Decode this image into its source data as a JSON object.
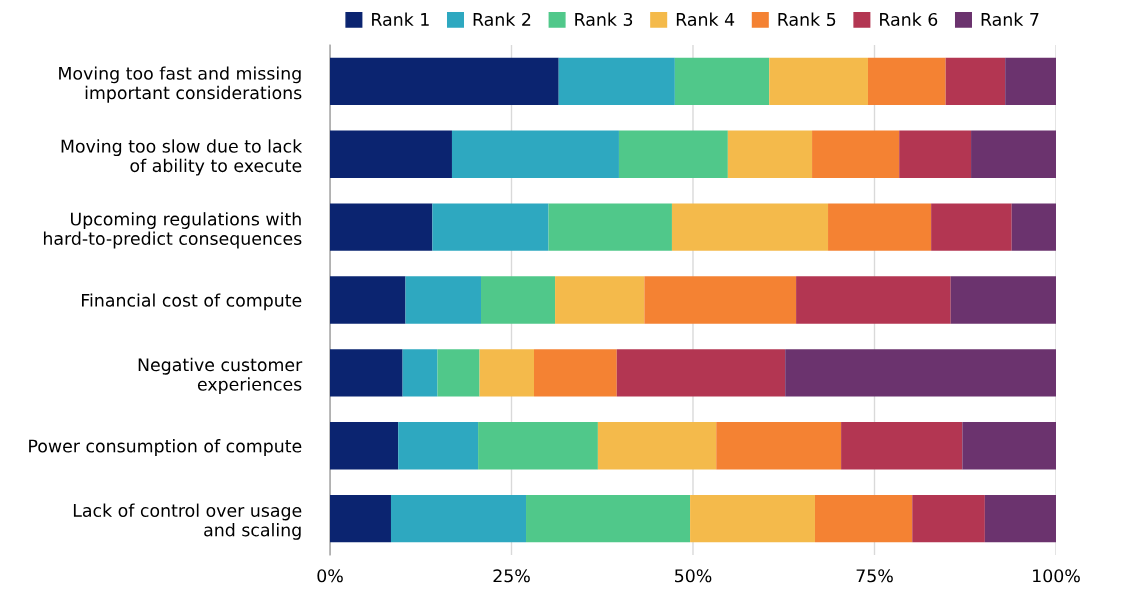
{
  "chart_data": {
    "type": "bar",
    "orientation": "horizontal",
    "stacked": true,
    "categories": [
      "Moving too fast and missing\nimportant considerations",
      "Moving too slow due to lack\nof ability to execute",
      "Upcoming regulations with\nhard-to-predict consequences",
      "Financial cost of compute",
      "Negative customer\nexperiences",
      "Power consumption of compute",
      "Lack of control over usage\nand scaling"
    ],
    "series": [
      {
        "name": "Rank 1",
        "color": "#0b2470",
        "values": [
          31.5,
          16.8,
          14.1,
          10.4,
          10.0,
          9.4,
          8.4
        ]
      },
      {
        "name": "Rank 2",
        "color": "#2ea8c0",
        "values": [
          16.0,
          23.0,
          16.0,
          10.4,
          4.8,
          11.0,
          18.6
        ]
      },
      {
        "name": "Rank 3",
        "color": "#50c88a",
        "values": [
          13.0,
          15.0,
          17.0,
          10.2,
          5.8,
          16.5,
          22.6
        ]
      },
      {
        "name": "Rank 4",
        "color": "#f4ba4b",
        "values": [
          13.6,
          11.6,
          21.5,
          12.3,
          7.5,
          16.3,
          17.2
        ]
      },
      {
        "name": "Rank 5",
        "color": "#f48233",
        "values": [
          10.7,
          12.0,
          14.2,
          20.9,
          11.4,
          17.2,
          13.4
        ]
      },
      {
        "name": "Rank 6",
        "color": "#b33652",
        "values": [
          8.2,
          9.9,
          11.1,
          21.3,
          23.2,
          16.7,
          10.0
        ]
      },
      {
        "name": "Rank 7",
        "color": "#6b336e",
        "values": [
          7.0,
          11.7,
          6.1,
          14.5,
          37.3,
          12.9,
          9.8
        ]
      }
    ],
    "xlim": [
      0,
      100
    ],
    "xticks": [
      {
        "value": 0,
        "label": "0%"
      },
      {
        "value": 25,
        "label": "25%"
      },
      {
        "value": 50,
        "label": "50%"
      },
      {
        "value": 75,
        "label": "75%"
      },
      {
        "value": 100,
        "label": "100%"
      }
    ],
    "grid": "x",
    "legend": "top"
  }
}
